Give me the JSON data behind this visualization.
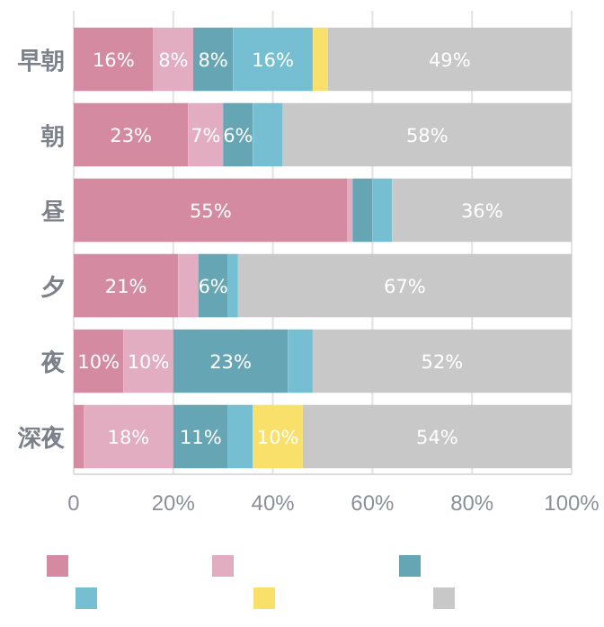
{
  "chart_data": {
    "type": "bar",
    "orientation": "horizontal",
    "stacked": true,
    "categories": [
      "早朝",
      "朝",
      "昼",
      "夕",
      "夜",
      "深夜"
    ],
    "series": [
      {
        "color": "#d48ba2",
        "values": [
          16,
          23,
          55,
          21,
          10,
          2
        ],
        "value_labels": [
          "16%",
          "23%",
          "55%",
          "21%",
          "10%",
          null
        ]
      },
      {
        "color": "#e2adc0",
        "values": [
          8,
          7,
          1,
          4,
          10,
          18
        ],
        "value_labels": [
          "8%",
          "7%",
          null,
          null,
          "10%",
          "18%"
        ]
      },
      {
        "color": "#66a5b4",
        "values": [
          8,
          6,
          4,
          6,
          23,
          11
        ],
        "value_labels": [
          "8%",
          "6%",
          null,
          "6%",
          "23%",
          "11%"
        ]
      },
      {
        "color": "#76bfd3",
        "values": [
          16,
          6,
          4,
          2,
          5,
          5
        ],
        "value_labels": [
          "16%",
          null,
          null,
          null,
          null,
          null
        ]
      },
      {
        "color": "#f8e06a",
        "values": [
          3,
          0,
          0,
          0,
          0,
          10
        ],
        "value_labels": [
          null,
          null,
          null,
          null,
          null,
          "10%"
        ]
      },
      {
        "color": "#c8c8c8",
        "values": [
          49,
          58,
          36,
          67,
          52,
          54
        ],
        "value_labels": [
          "49%",
          "58%",
          "36%",
          "67%",
          "52%",
          "54%"
        ]
      }
    ],
    "xlim": [
      0,
      100
    ],
    "xticks": [
      0,
      {
        "value": 20,
        "label": "20%"
      },
      {
        "value": 40,
        "label": "40%"
      },
      {
        "value": 60,
        "label": "60%"
      },
      {
        "value": 80,
        "label": "80%"
      },
      {
        "value": 100,
        "label": "100%"
      }
    ],
    "grid": "x"
  }
}
